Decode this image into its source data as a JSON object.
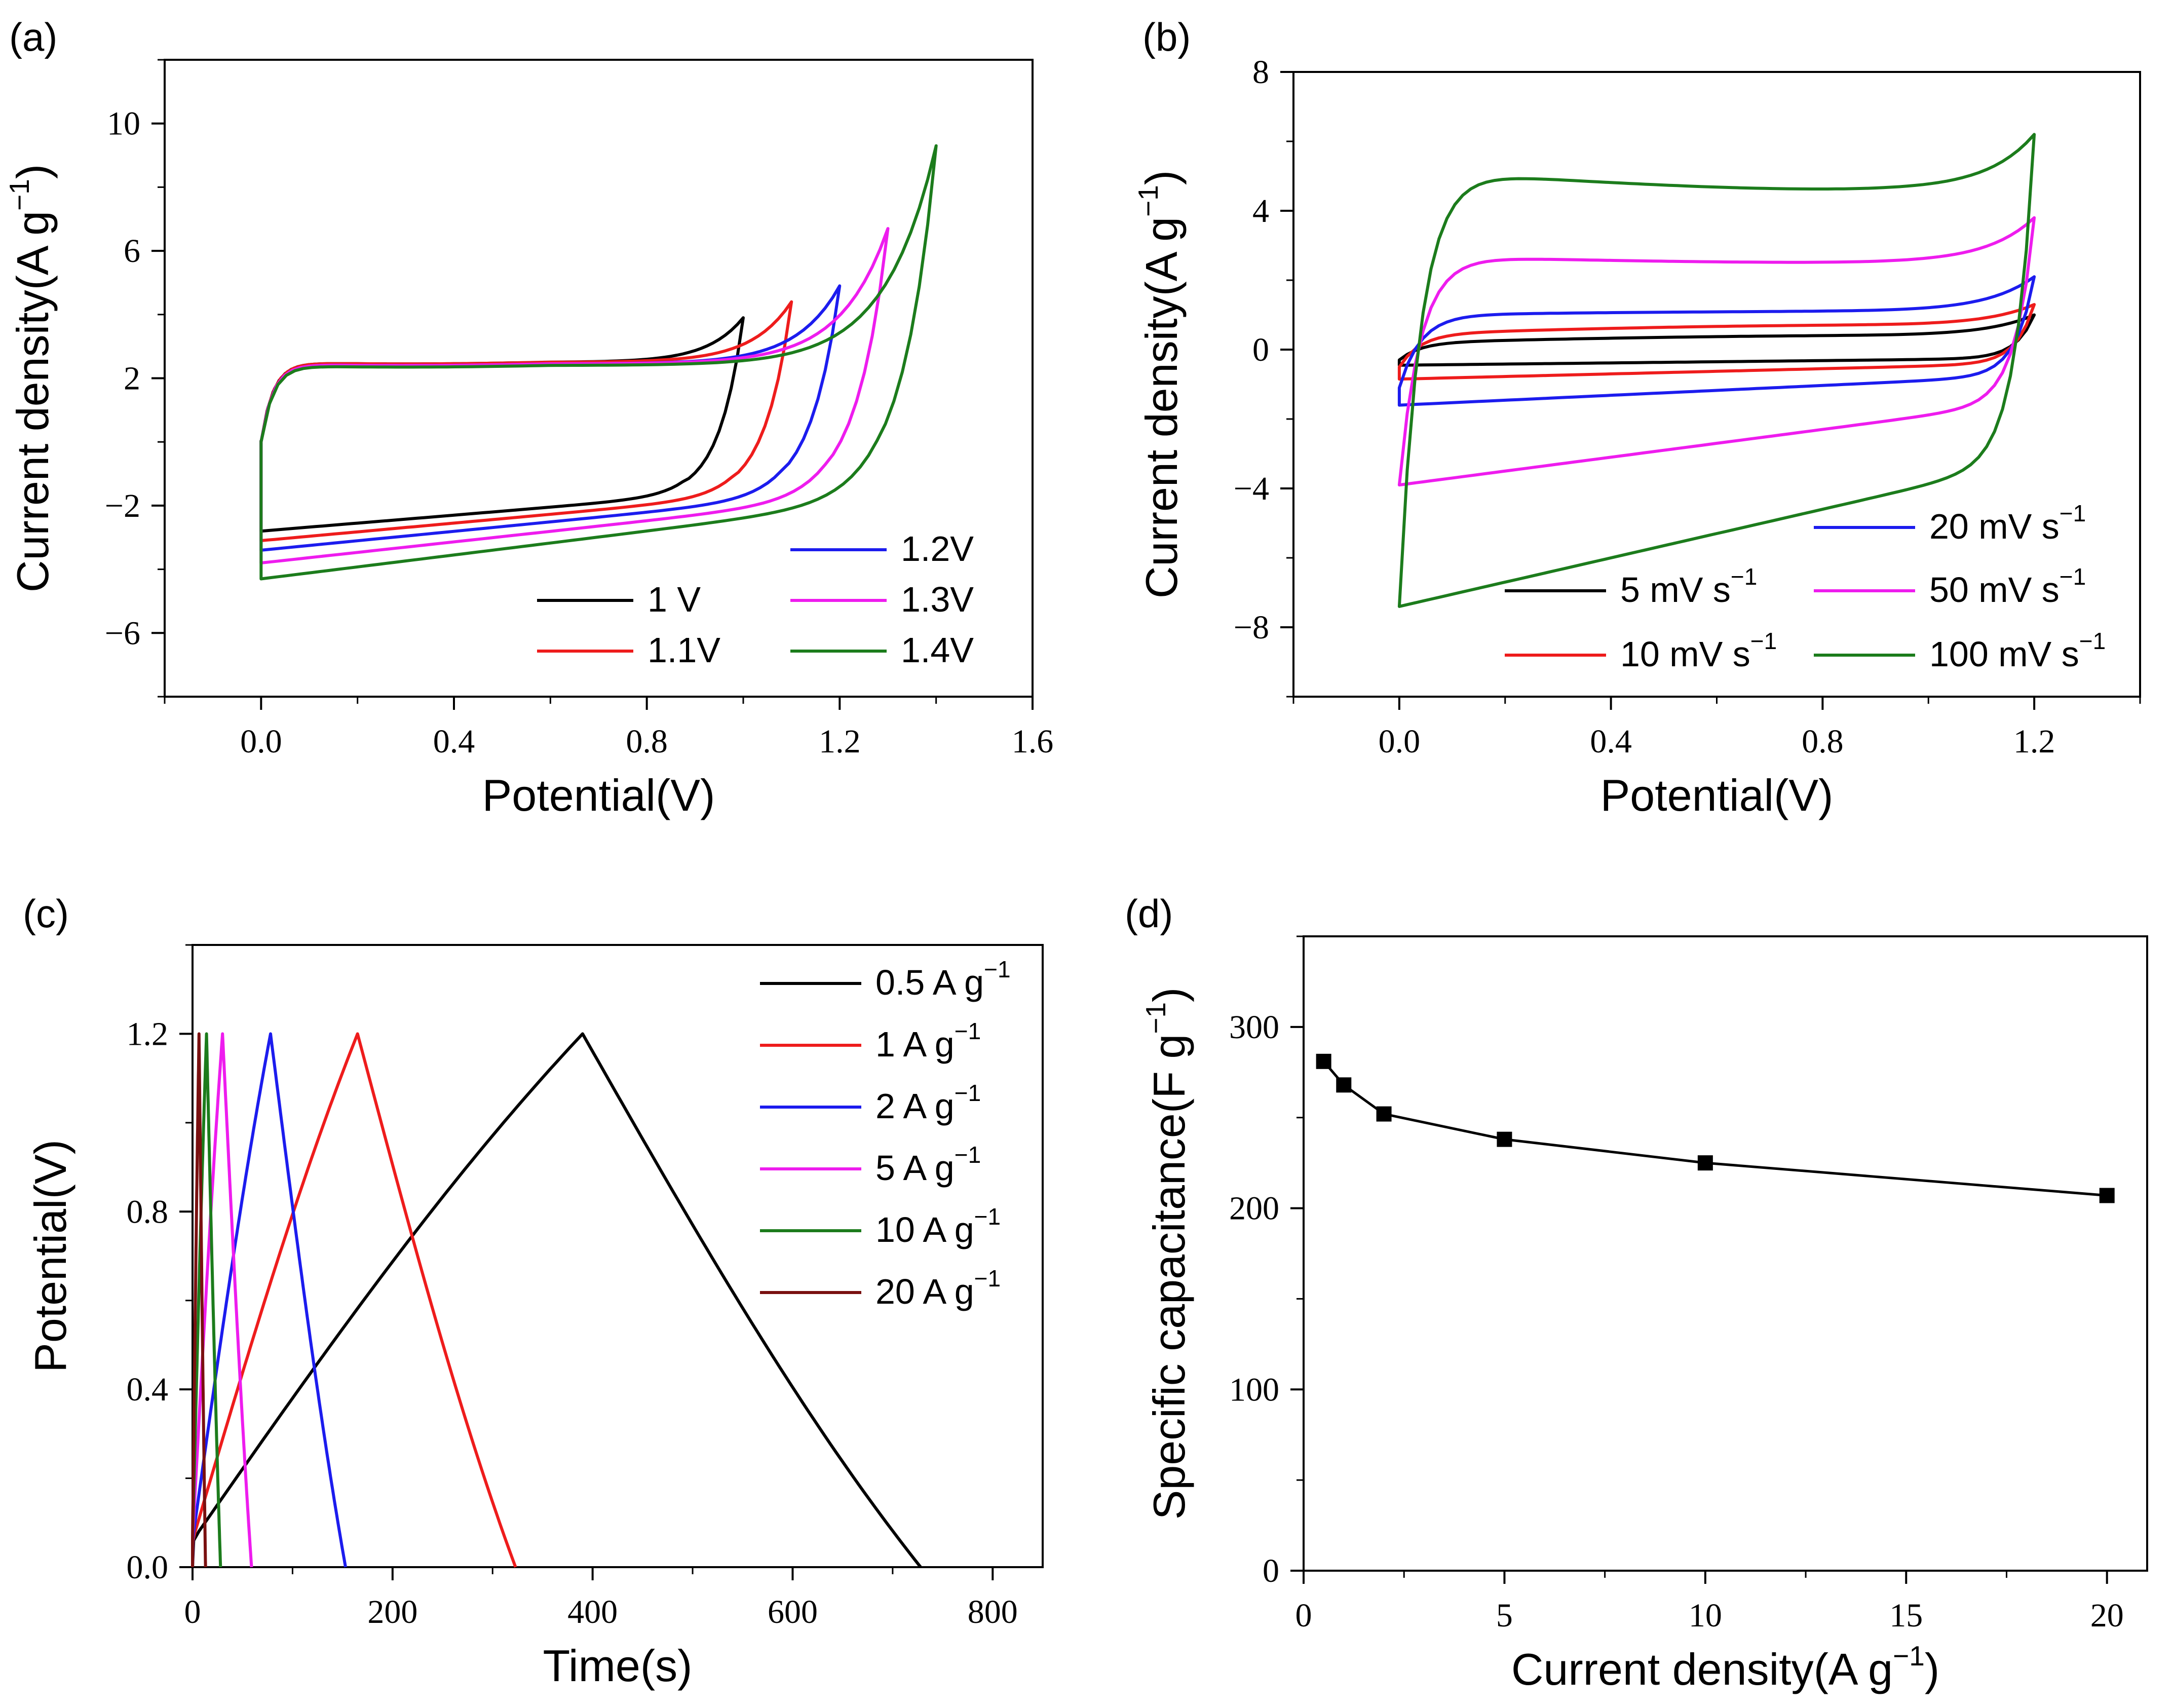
{
  "chart_data": [
    {
      "panel": "(a)",
      "type": "line",
      "xlabel": "Potential(V)",
      "ylabel": "Current density(A g",
      "ylabel_sup": "-1",
      "ylabel_close": ")",
      "xlim": [
        -0.2,
        1.6
      ],
      "ylim": [
        -8,
        12
      ],
      "xticks": [
        0.0,
        0.4,
        0.8,
        1.2,
        1.6
      ],
      "xtick_labels": [
        "0.0",
        "0.4",
        "0.8",
        "1.2",
        "1.6"
      ],
      "yticks": [
        -6,
        -2,
        2,
        6,
        10
      ],
      "ytick_labels": [
        "-6",
        "-2",
        "2",
        "6",
        "10"
      ],
      "series": [
        {
          "name": "1 V",
          "color": "#000000",
          "vmax": 1.0,
          "peak": 3.9,
          "plateau": 2.5,
          "bottom": -2.8,
          "rev_end": -1.7
        },
        {
          "name": "1.1V",
          "color": "#ee1c1c",
          "vmax": 1.1,
          "peak": 4.4,
          "plateau": 2.5,
          "bottom": -3.1,
          "rev_end": -1.75
        },
        {
          "name": "1.2V",
          "color": "#1c1cee",
          "vmax": 1.2,
          "peak": 4.9,
          "plateau": 2.45,
          "bottom": -3.4,
          "rev_end": -1.8
        },
        {
          "name": "1.3V",
          "color": "#ee1cee",
          "vmax": 1.3,
          "peak": 6.7,
          "plateau": 2.45,
          "bottom": -3.8,
          "rev_end": -1.85
        },
        {
          "name": "1.4V",
          "color": "#1c7c1c",
          "vmax": 1.4,
          "peak": 9.3,
          "plateau": 2.4,
          "bottom": -4.3,
          "rev_end": -1.9
        }
      ],
      "legend_columns": [
        [
          "1 V",
          "1.1V"
        ],
        [
          "1.2V",
          "1.3V",
          "1.4V"
        ]
      ]
    },
    {
      "panel": "(b)",
      "type": "line",
      "xlabel": "Potential(V)",
      "ylabel": "Current density(A g",
      "ylabel_sup": "-1",
      "ylabel_close": ")",
      "xlim": [
        -0.2,
        1.4
      ],
      "ylim": [
        -10,
        8
      ],
      "xticks": [
        0.0,
        0.4,
        0.8,
        1.2
      ],
      "xtick_labels": [
        "0.0",
        "0.4",
        "0.8",
        "1.2"
      ],
      "yticks": [
        -8,
        -4,
        0,
        4,
        8
      ],
      "ytick_labels": [
        "-8",
        "-4",
        "0",
        "4",
        "8"
      ],
      "series": [
        {
          "name": "5 mV s",
          "sup": "-1",
          "color": "#000000",
          "anodic_start": -0.3,
          "anodic_plateau": 0.2,
          "anodic_end_plateau": 0.4,
          "anodic_peak": 1.0,
          "cathodic_start": -0.45,
          "cathodic_mid": -0.25
        },
        {
          "name": "10 mV s",
          "sup": "-1",
          "color": "#ee1c1c",
          "anodic_start": -0.5,
          "anodic_plateau": 0.45,
          "anodic_end_plateau": 0.7,
          "anodic_peak": 1.3,
          "cathodic_start": -0.85,
          "cathodic_mid": -0.4
        },
        {
          "name": "20 mV s",
          "sup": "-1",
          "color": "#1c1cee",
          "anodic_start": -1.1,
          "anodic_plateau": 1.0,
          "anodic_end_plateau": 1.1,
          "anodic_peak": 2.1,
          "cathodic_start": -1.6,
          "cathodic_mid": -0.75
        },
        {
          "name": "50 mV s",
          "sup": "-1",
          "color": "#ee1cee",
          "anodic_start": -3.9,
          "anodic_plateau": 2.7,
          "anodic_end_plateau": 2.5,
          "anodic_peak": 3.8,
          "cathodic_start": -3.9,
          "cathodic_mid": -1.5
        },
        {
          "name": "100 mV s",
          "sup": "-1",
          "color": "#1c7c1c",
          "anodic_start": -7.4,
          "anodic_plateau": 5.2,
          "anodic_end_plateau": 4.6,
          "anodic_peak": 6.2,
          "cathodic_start": -7.4,
          "cathodic_mid": -3.2
        }
      ]
    },
    {
      "panel": "(c)",
      "type": "line",
      "xlabel": "Time(s)",
      "ylabel": "Potential(V)",
      "xlim": [
        0,
        850
      ],
      "ylim": [
        0,
        1.4
      ],
      "xticks": [
        0,
        200,
        400,
        600,
        800
      ],
      "xtick_labels": [
        "0",
        "200",
        "400",
        "600",
        "800"
      ],
      "yticks": [
        0.0,
        0.4,
        0.8,
        1.2
      ],
      "ytick_labels": [
        "0.0",
        "0.4",
        "0.8",
        "1.2"
      ],
      "series": [
        {
          "name": "0.5 A g",
          "sup": "-1",
          "color": "#000000",
          "t_peak": 390,
          "t_end": 728
        },
        {
          "name": "1 A g",
          "sup": "-1",
          "color": "#ee1c1c",
          "t_peak": 165,
          "t_end": 323
        },
        {
          "name": "2 A g",
          "sup": "-1",
          "color": "#1c1cee",
          "t_peak": 78,
          "t_end": 153
        },
        {
          "name": "5 A g",
          "sup": "-1",
          "color": "#ee1cee",
          "t_peak": 30,
          "t_end": 59
        },
        {
          "name": "10 A g",
          "sup": "-1",
          "color": "#1c7c1c",
          "t_peak": 14,
          "t_end": 28
        },
        {
          "name": "20 A g",
          "sup": "-1",
          "color": "#7a1010",
          "t_peak": 6.5,
          "t_end": 13
        }
      ]
    },
    {
      "panel": "(d)",
      "type": "line",
      "xlabel": "Current density(A g",
      "xlabel_sup": "-1",
      "xlabel_close": ")",
      "ylabel": "Specific capacitance(F g",
      "ylabel_sup": "-1",
      "ylabel_close": ")",
      "xlim": [
        0,
        21
      ],
      "ylim": [
        0,
        350
      ],
      "xticks": [
        0,
        5,
        10,
        15,
        20
      ],
      "xtick_labels": [
        "0",
        "5",
        "10",
        "15",
        "20"
      ],
      "yticks": [
        0,
        100,
        200,
        300
      ],
      "ytick_labels": [
        "0",
        "100",
        "200",
        "300"
      ],
      "x": [
        0.5,
        1,
        2,
        5,
        10,
        20
      ],
      "y": [
        281,
        268,
        252,
        238,
        225,
        207
      ],
      "color": "#000000"
    }
  ]
}
